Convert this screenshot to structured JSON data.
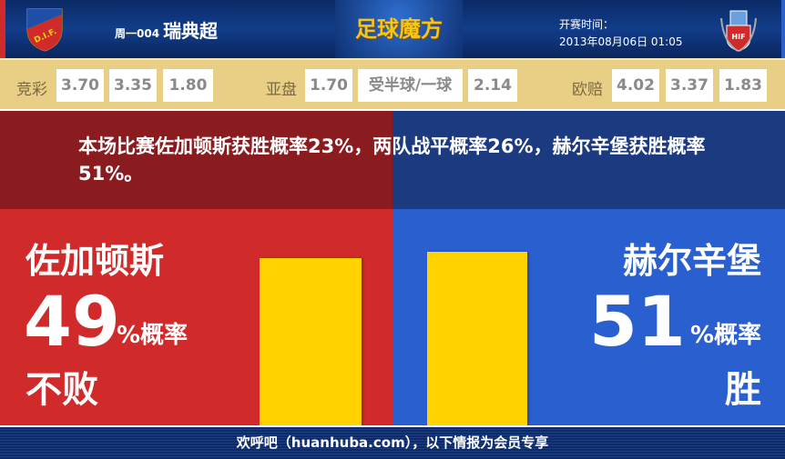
{
  "header": {
    "league_code": "周一004",
    "league_name": "瑞典超",
    "brand": "足球魔方",
    "time_label": "开赛时间：",
    "time_value": "2013年08月06日 01:05",
    "home_logo_text": "D.I.F.",
    "away_logo_text": "HIF"
  },
  "odds": {
    "jingcai": {
      "label": "竞彩",
      "values": [
        "3.70",
        "3.35",
        "1.80"
      ]
    },
    "yapan": {
      "label": "亚盘",
      "values": [
        "1.70",
        "受半球/一球",
        "2.14"
      ]
    },
    "oupei": {
      "label": "欧赔",
      "values": [
        "4.02",
        "3.37",
        "1.83"
      ]
    }
  },
  "summary": "本场比赛佐加顿斯获胜概率23%，两队战平概率26%，赫尔辛堡获胜概率51%。",
  "home": {
    "team": "佐加顿斯",
    "percent": "49",
    "percent_label": "%概率",
    "result": "不败",
    "color": "#d12a2a",
    "bar_value": 49
  },
  "away": {
    "team": "赫尔辛堡",
    "percent": "51",
    "percent_label": "%概率",
    "result": "胜",
    "color": "#2a5fcf",
    "bar_value": 51
  },
  "footer": "欢呼吧（huanhuba.com），以下情报为会员专享"
}
